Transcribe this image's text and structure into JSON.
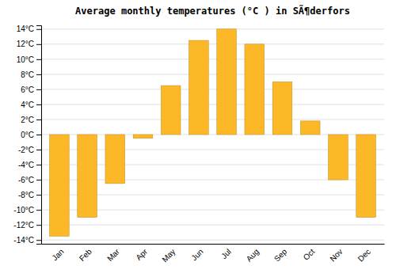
{
  "chart_data": {
    "type": "bar",
    "title": "Average monthly temperatures (°C ) in SÃ¶derfors",
    "categories": [
      "Jan",
      "Feb",
      "Mar",
      "Apr",
      "May",
      "Jun",
      "Jul",
      "Aug",
      "Sep",
      "Oct",
      "Nov",
      "Dec"
    ],
    "values": [
      -13.5,
      -11.0,
      -6.5,
      -0.5,
      6.5,
      12.5,
      14.0,
      12.0,
      7.0,
      1.8,
      -6.0,
      -11.0
    ],
    "color": "#FDB827",
    "ylim": [
      -14.5,
      14.5
    ],
    "yticks": [
      {
        "value": -14,
        "label": "-14°C"
      },
      {
        "value": -12,
        "label": "-12°C"
      },
      {
        "value": -10,
        "label": "-10°C"
      },
      {
        "value": -8,
        "label": "-8°C"
      },
      {
        "value": -6,
        "label": "-6°C"
      },
      {
        "value": -4,
        "label": "-4°C"
      },
      {
        "value": -2,
        "label": "-2°C"
      },
      {
        "value": 0,
        "label": "0°C"
      },
      {
        "value": 2,
        "label": "2°C"
      },
      {
        "value": 4,
        "label": "4°C"
      },
      {
        "value": 6,
        "label": "6°C"
      },
      {
        "value": 8,
        "label": "8°C"
      },
      {
        "value": 10,
        "label": "10°C"
      },
      {
        "value": 12,
        "label": "12°C"
      },
      {
        "value": 14,
        "label": "14°C"
      }
    ],
    "grid": true
  }
}
